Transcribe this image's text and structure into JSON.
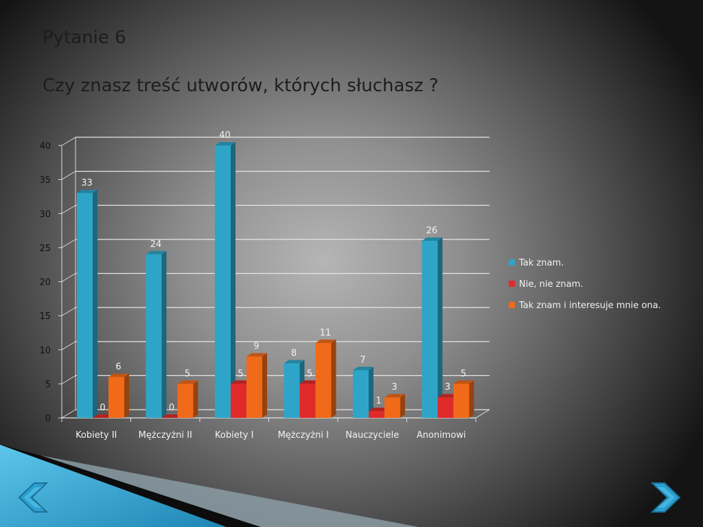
{
  "slide": {
    "title": "Pytanie 6",
    "subtitle": "Czy znasz treść utworów, których słuchasz ?"
  },
  "chart_data": {
    "type": "bar",
    "title": "",
    "xlabel": "",
    "ylabel": "",
    "ylim": [
      0,
      40
    ],
    "yticks": [
      0,
      5,
      10,
      15,
      20,
      25,
      30,
      35,
      40
    ],
    "grid": true,
    "legend_position": "right",
    "categories": [
      "Kobiety II",
      "Mężczyżni II",
      "Kobiety I",
      "Mężczyżni I",
      "Nauczyciele",
      "Anonimowi"
    ],
    "series": [
      {
        "name": "Tak znam.",
        "color": "#2ea5c8",
        "values": [
          33,
          24,
          40,
          8,
          7,
          26
        ]
      },
      {
        "name": "Nie, nie znam.",
        "color": "#e02a2a",
        "values": [
          0,
          0,
          5,
          5,
          1,
          3
        ]
      },
      {
        "name": "Tak znam i interesuje mnie ona.",
        "color": "#f06a1a",
        "values": [
          6,
          5,
          9,
          11,
          3,
          5
        ]
      }
    ]
  },
  "navigation": {
    "prev_icon": "chevron-left-icon",
    "next_icon": "chevron-right-icon",
    "accent": "#3ab0d8"
  }
}
